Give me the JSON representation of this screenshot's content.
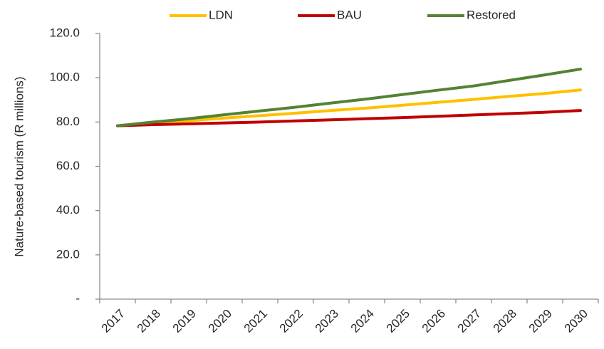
{
  "chart_data": {
    "type": "line",
    "y_label": "Nature-based tourism (R millions)",
    "categories": [
      "2017",
      "2018",
      "2019",
      "2020",
      "2021",
      "2022",
      "2023",
      "2024",
      "2025",
      "2026",
      "2027",
      "2028",
      "2029",
      "2030"
    ],
    "series": [
      {
        "name": "LDN",
        "color": "#ffc000",
        "values": [
          78.3,
          79.5,
          80.6,
          81.8,
          82.9,
          84.0,
          85.2,
          86.3,
          87.6,
          88.9,
          90.2,
          91.6,
          92.9,
          94.5
        ]
      },
      {
        "name": "BAU",
        "color": "#c00000",
        "values": [
          78.3,
          78.8,
          79.2,
          79.6,
          80.0,
          80.5,
          81.0,
          81.5,
          82.0,
          82.6,
          83.2,
          83.8,
          84.4,
          85.2
        ]
      },
      {
        "name": "Restored",
        "color": "#548235",
        "values": [
          78.3,
          80.0,
          81.5,
          83.3,
          85.0,
          86.7,
          88.6,
          90.4,
          92.4,
          94.4,
          96.3,
          98.8,
          101.3,
          103.9
        ]
      }
    ],
    "ylim": [
      0,
      120
    ],
    "yticks": [
      {
        "value": 0,
        "label": "-"
      },
      {
        "value": 20,
        "label": "20.0"
      },
      {
        "value": 40,
        "label": "40.0"
      },
      {
        "value": 60,
        "label": "60.0"
      },
      {
        "value": 80,
        "label": "80.0"
      },
      {
        "value": 100,
        "label": "100.0"
      },
      {
        "value": 120,
        "label": "120.0"
      }
    ],
    "grid": false,
    "legend": "top"
  }
}
